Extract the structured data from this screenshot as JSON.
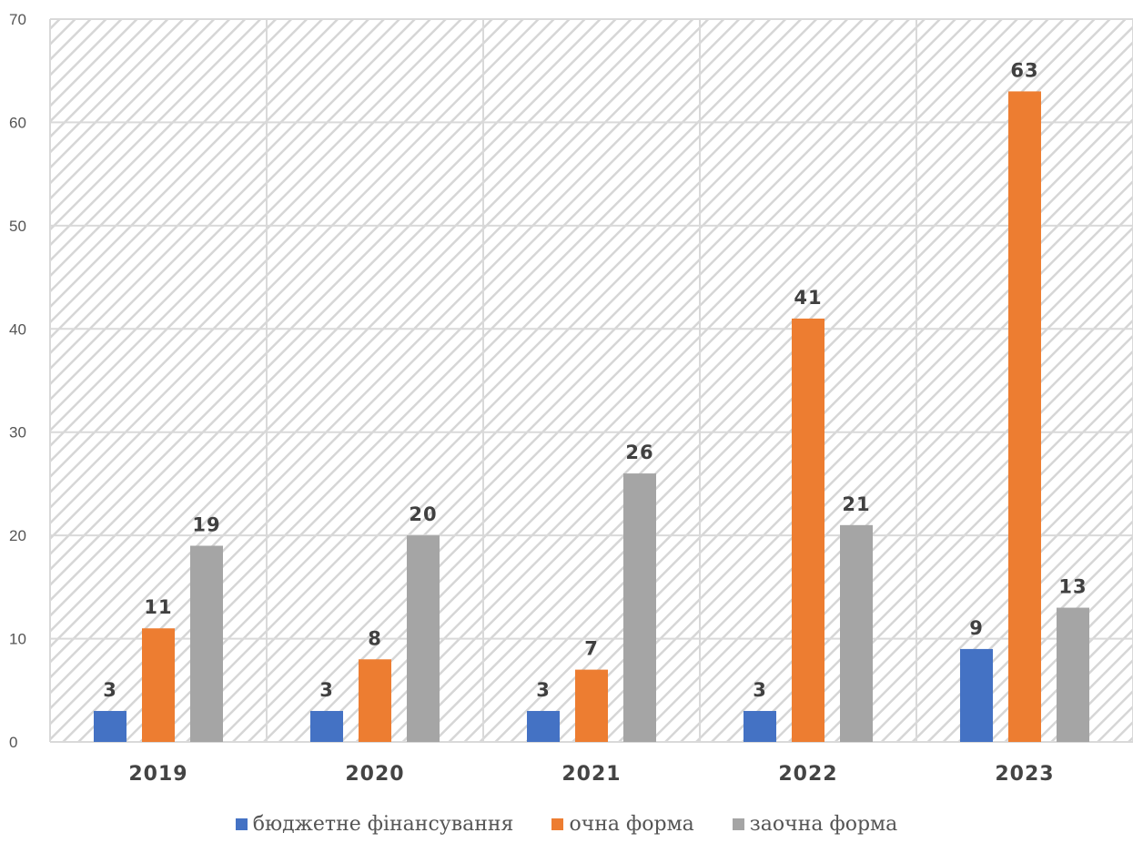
{
  "colors": {
    "series_budget": "#4472C4",
    "series_fulltime": "#ED7D31",
    "series_parttime": "#A5A5A5",
    "grid": "#d9d9d9",
    "hatch": "#d6d6d6"
  },
  "chart_data": {
    "type": "bar",
    "title": "",
    "xlabel": "",
    "ylabel": "",
    "categories": [
      "2019",
      "2020",
      "2021",
      "2022",
      "2023"
    ],
    "series": [
      {
        "name": "бюджетне фінансування",
        "values": [
          3,
          3,
          3,
          3,
          9
        ]
      },
      {
        "name": "очна форма",
        "values": [
          11,
          8,
          7,
          41,
          63
        ]
      },
      {
        "name": "заочна форма",
        "values": [
          19,
          20,
          26,
          21,
          13
        ]
      }
    ],
    "ylim": [
      0,
      70
    ],
    "yticks": [
      "0",
      "10",
      "20",
      "30",
      "40",
      "50",
      "60",
      "70"
    ],
    "grid": true,
    "legend_position": "bottom",
    "data_labels": true,
    "background": "diagonal-hatch"
  }
}
